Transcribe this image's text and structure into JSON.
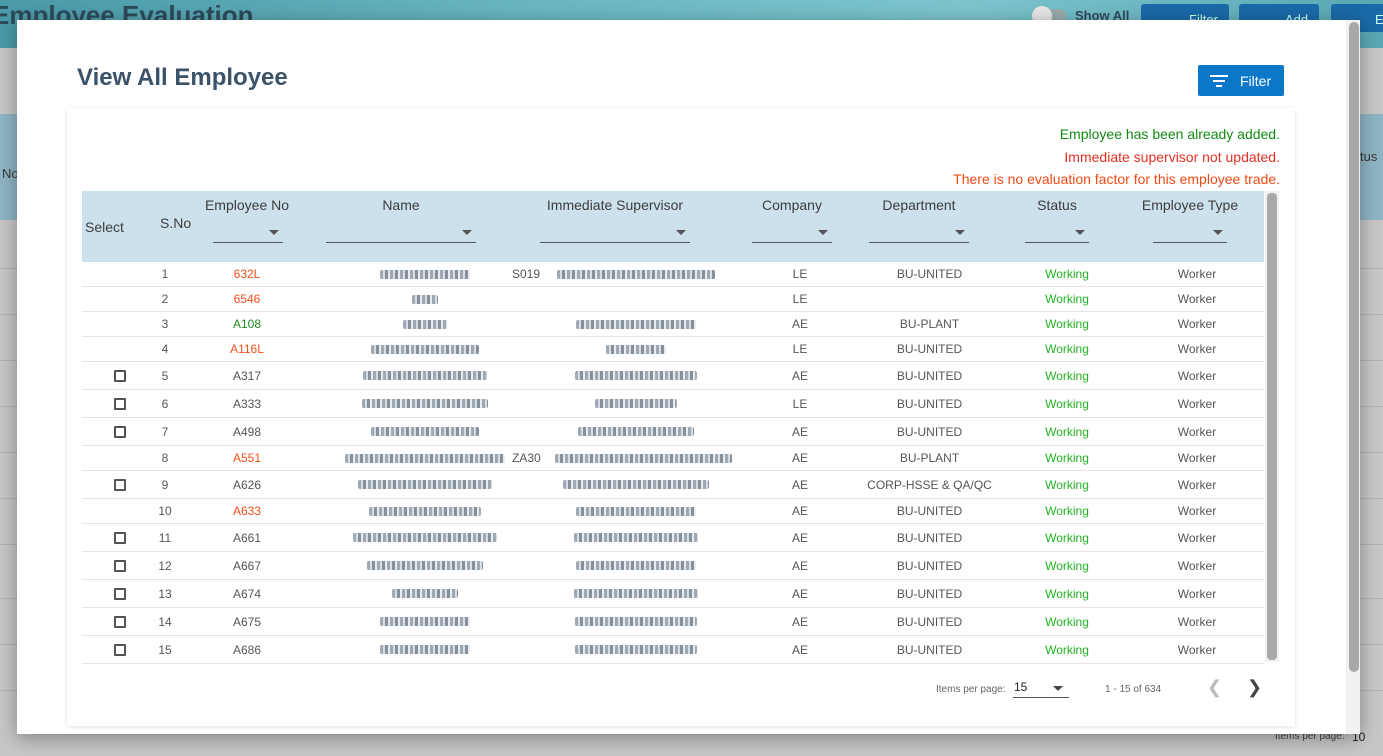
{
  "background": {
    "title": "Employee Evaluation",
    "show_all_label": "Show All",
    "buttons": [
      "Filter",
      "Add",
      "E"
    ],
    "side_labels": [
      "No",
      "tus"
    ],
    "pager_label": "Items per page:",
    "pager_value": "10"
  },
  "modal": {
    "title": "View All Employee",
    "filter_label": "Filter",
    "messages": {
      "already_added": "Employee has been already added.",
      "supervisor_not_updated": "Immediate supervisor not updated.",
      "no_eval_factor": "There is no evaluation factor for this employee trade."
    },
    "columns": {
      "select": "Select",
      "sno": "S.No",
      "employee_no": "Employee No",
      "name": "Name",
      "supervisor": "Immediate Supervisor",
      "company": "Company",
      "department": "Department",
      "status": "Status",
      "employee_type": "Employee Type"
    },
    "rows": [
      {
        "sno": "1",
        "emp": "632L",
        "emp_color": "orange",
        "checkbox": false,
        "sup_prefix": "S019",
        "company": "LE",
        "dept": "BU-UNITED",
        "status": "Working",
        "type": "Worker"
      },
      {
        "sno": "2",
        "emp": "6546",
        "emp_color": "orange",
        "checkbox": false,
        "sup_prefix": "",
        "company": "LE",
        "dept": "",
        "status": "Working",
        "type": "Worker"
      },
      {
        "sno": "3",
        "emp": "A108",
        "emp_color": "green",
        "checkbox": false,
        "sup_prefix": "",
        "company": "AE",
        "dept": "BU-PLANT",
        "status": "Working",
        "type": "Worker"
      },
      {
        "sno": "4",
        "emp": "A116L",
        "emp_color": "orange",
        "checkbox": false,
        "sup_prefix": "",
        "company": "LE",
        "dept": "BU-UNITED",
        "status": "Working",
        "type": "Worker"
      },
      {
        "sno": "5",
        "emp": "A317",
        "emp_color": "gray",
        "checkbox": true,
        "sup_prefix": "",
        "company": "AE",
        "dept": "BU-UNITED",
        "status": "Working",
        "type": "Worker"
      },
      {
        "sno": "6",
        "emp": "A333",
        "emp_color": "gray",
        "checkbox": true,
        "sup_prefix": "",
        "company": "LE",
        "dept": "BU-UNITED",
        "status": "Working",
        "type": "Worker"
      },
      {
        "sno": "7",
        "emp": "A498",
        "emp_color": "gray",
        "checkbox": true,
        "sup_prefix": "",
        "company": "AE",
        "dept": "BU-UNITED",
        "status": "Working",
        "type": "Worker"
      },
      {
        "sno": "8",
        "emp": "A551",
        "emp_color": "orange",
        "checkbox": false,
        "sup_prefix": "ZA30",
        "company": "AE",
        "dept": "BU-PLANT",
        "status": "Working",
        "type": "Worker"
      },
      {
        "sno": "9",
        "emp": "A626",
        "emp_color": "gray",
        "checkbox": true,
        "sup_prefix": "",
        "company": "AE",
        "dept": "CORP-HSSE & QA/QC",
        "status": "Working",
        "type": "Worker"
      },
      {
        "sno": "10",
        "emp": "A633",
        "emp_color": "orange",
        "checkbox": false,
        "sup_prefix": "",
        "company": "AE",
        "dept": "BU-UNITED",
        "status": "Working",
        "type": "Worker"
      },
      {
        "sno": "11",
        "emp": "A661",
        "emp_color": "gray",
        "checkbox": true,
        "sup_prefix": "",
        "company": "AE",
        "dept": "BU-UNITED",
        "status": "Working",
        "type": "Worker"
      },
      {
        "sno": "12",
        "emp": "A667",
        "emp_color": "gray",
        "checkbox": true,
        "sup_prefix": "",
        "company": "AE",
        "dept": "BU-UNITED",
        "status": "Working",
        "type": "Worker"
      },
      {
        "sno": "13",
        "emp": "A674",
        "emp_color": "gray",
        "checkbox": true,
        "sup_prefix": "",
        "company": "AE",
        "dept": "BU-UNITED",
        "status": "Working",
        "type": "Worker"
      },
      {
        "sno": "14",
        "emp": "A675",
        "emp_color": "gray",
        "checkbox": true,
        "sup_prefix": "",
        "company": "AE",
        "dept": "BU-UNITED",
        "status": "Working",
        "type": "Worker"
      },
      {
        "sno": "15",
        "emp": "A686",
        "emp_color": "gray",
        "checkbox": true,
        "sup_prefix": "",
        "company": "AE",
        "dept": "BU-UNITED",
        "status": "Working",
        "type": "Worker"
      }
    ],
    "paginator": {
      "items_per_page_label": "Items per page:",
      "items_per_page": "15",
      "range": "1 - 15 of 634"
    }
  },
  "colors": {
    "primary_button": "#0a77c9",
    "header_row": "#cde1ec",
    "status_working": "#22b322",
    "msg_green": "#138a13",
    "msg_red": "#e53024",
    "msg_orange": "#f24a16"
  }
}
